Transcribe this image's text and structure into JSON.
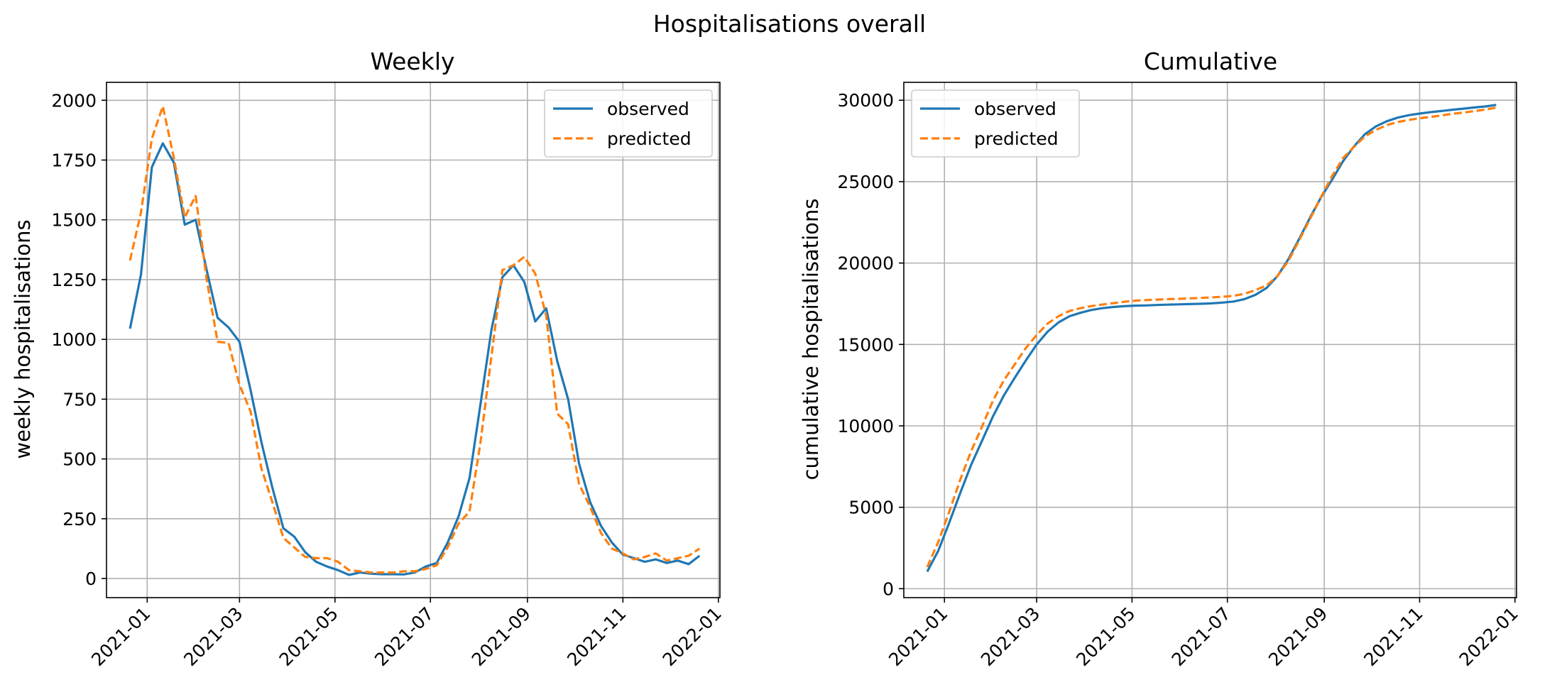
{
  "suptitle": "Hospitalisations overall",
  "colors": {
    "observed": "#1f77b4",
    "predicted": "#ff7f0e",
    "grid": "#b0b0b0"
  },
  "chart_data": [
    {
      "type": "line",
      "title": "Weekly",
      "xlabel": "",
      "ylabel": "weekly hospitalisations",
      "x_type": "date",
      "xlim": [
        "2020-12-06",
        "2022-01-02"
      ],
      "ylim": [
        -80,
        2075
      ],
      "xticks": [
        "2021-01",
        "2021-03",
        "2021-05",
        "2021-07",
        "2021-09",
        "2021-11",
        "2022-01"
      ],
      "yticks": [
        0,
        250,
        500,
        750,
        1000,
        1250,
        1500,
        1750,
        2000
      ],
      "grid": true,
      "legend_position": "upper right",
      "x": [
        "2020-12-21",
        "2020-12-28",
        "2021-01-04",
        "2021-01-11",
        "2021-01-18",
        "2021-01-25",
        "2021-02-01",
        "2021-02-08",
        "2021-02-15",
        "2021-02-22",
        "2021-03-01",
        "2021-03-08",
        "2021-03-15",
        "2021-03-22",
        "2021-03-29",
        "2021-04-05",
        "2021-04-12",
        "2021-04-19",
        "2021-04-26",
        "2021-05-03",
        "2021-05-10",
        "2021-05-17",
        "2021-05-24",
        "2021-05-31",
        "2021-06-07",
        "2021-06-14",
        "2021-06-21",
        "2021-06-28",
        "2021-07-05",
        "2021-07-12",
        "2021-07-19",
        "2021-07-26",
        "2021-08-02",
        "2021-08-09",
        "2021-08-16",
        "2021-08-23",
        "2021-08-30",
        "2021-09-06",
        "2021-09-13",
        "2021-09-20",
        "2021-09-27",
        "2021-10-04",
        "2021-10-11",
        "2021-10-18",
        "2021-10-25",
        "2021-11-01",
        "2021-11-08",
        "2021-11-15",
        "2021-11-22",
        "2021-11-29",
        "2021-12-06",
        "2021-12-13",
        "2021-12-20"
      ],
      "series": [
        {
          "name": "observed",
          "style": "solid",
          "values": [
            1045,
            1270,
            1720,
            1820,
            1740,
            1480,
            1500,
            1290,
            1090,
            1050,
            990,
            790,
            570,
            380,
            210,
            175,
            110,
            70,
            50,
            35,
            15,
            25,
            20,
            18,
            18,
            17,
            25,
            50,
            65,
            150,
            260,
            420,
            730,
            1040,
            1260,
            1310,
            1240,
            1075,
            1130,
            910,
            750,
            480,
            320,
            220,
            150,
            100,
            85,
            70,
            80,
            65,
            75,
            60,
            95
          ]
        },
        {
          "name": "predicted",
          "style": "dashed",
          "values": [
            1330,
            1530,
            1840,
            1975,
            1760,
            1510,
            1600,
            1250,
            990,
            985,
            810,
            700,
            460,
            320,
            170,
            130,
            90,
            85,
            85,
            70,
            35,
            30,
            25,
            25,
            25,
            30,
            30,
            40,
            55,
            130,
            230,
            280,
            570,
            930,
            1290,
            1310,
            1345,
            1275,
            1100,
            690,
            645,
            395,
            300,
            190,
            125,
            105,
            80,
            90,
            105,
            75,
            85,
            95,
            125
          ]
        }
      ]
    },
    {
      "type": "line",
      "title": "Cumulative",
      "xlabel": "",
      "ylabel": "cumulative hospitalisations",
      "x_type": "date",
      "xlim": [
        "2020-12-06",
        "2022-01-02"
      ],
      "ylim": [
        -550,
        31100
      ],
      "xticks": [
        "2021-01",
        "2021-03",
        "2021-05",
        "2021-07",
        "2021-09",
        "2021-11",
        "2022-01"
      ],
      "yticks": [
        0,
        5000,
        10000,
        15000,
        20000,
        25000,
        30000
      ],
      "grid": true,
      "legend_position": "upper left",
      "x": [
        "2020-12-21",
        "2020-12-28",
        "2021-01-04",
        "2021-01-11",
        "2021-01-18",
        "2021-01-25",
        "2021-02-01",
        "2021-02-08",
        "2021-02-15",
        "2021-02-22",
        "2021-03-01",
        "2021-03-08",
        "2021-03-15",
        "2021-03-22",
        "2021-03-29",
        "2021-04-05",
        "2021-04-12",
        "2021-04-19",
        "2021-04-26",
        "2021-05-03",
        "2021-05-10",
        "2021-05-17",
        "2021-05-24",
        "2021-05-31",
        "2021-06-07",
        "2021-06-14",
        "2021-06-21",
        "2021-06-28",
        "2021-07-05",
        "2021-07-12",
        "2021-07-19",
        "2021-07-26",
        "2021-08-02",
        "2021-08-09",
        "2021-08-16",
        "2021-08-23",
        "2021-08-30",
        "2021-09-06",
        "2021-09-13",
        "2021-09-20",
        "2021-09-27",
        "2021-10-04",
        "2021-10-11",
        "2021-10-18",
        "2021-10-25",
        "2021-11-01",
        "2021-11-08",
        "2021-11-15",
        "2021-11-22",
        "2021-11-29",
        "2021-12-06",
        "2021-12-13",
        "2021-12-20"
      ],
      "series": [
        {
          "name": "observed",
          "style": "solid",
          "values": [
            1045,
            2315,
            4035,
            5855,
            7595,
            9075,
            10575,
            11865,
            12955,
            14005,
            14995,
            15785,
            16355,
            16735,
            16945,
            17120,
            17230,
            17300,
            17350,
            17385,
            17400,
            17425,
            17445,
            17463,
            17481,
            17498,
            17523,
            17573,
            17638,
            17788,
            18048,
            18468,
            19198,
            20238,
            21498,
            22808,
            24048,
            25123,
            26253,
            27163,
            27913,
            28393,
            28713,
            28933,
            29083,
            29183,
            29268,
            29338,
            29418,
            29483,
            29558,
            29618,
            29713
          ]
        },
        {
          "name": "predicted",
          "style": "dashed",
          "values": [
            1330,
            2860,
            4700,
            6675,
            8435,
            9945,
            11545,
            12795,
            13785,
            14770,
            15580,
            16280,
            16740,
            17060,
            17230,
            17360,
            17450,
            17535,
            17620,
            17690,
            17725,
            17755,
            17780,
            17805,
            17830,
            17860,
            17890,
            17930,
            17985,
            18115,
            18345,
            18625,
            19195,
            20125,
            21415,
            22725,
            24070,
            25345,
            26445,
            27135,
            27780,
            28175,
            28475,
            28665,
            28790,
            28895,
            28975,
            29065,
            29170,
            29245,
            29330,
            29425,
            29550
          ]
        }
      ]
    }
  ]
}
